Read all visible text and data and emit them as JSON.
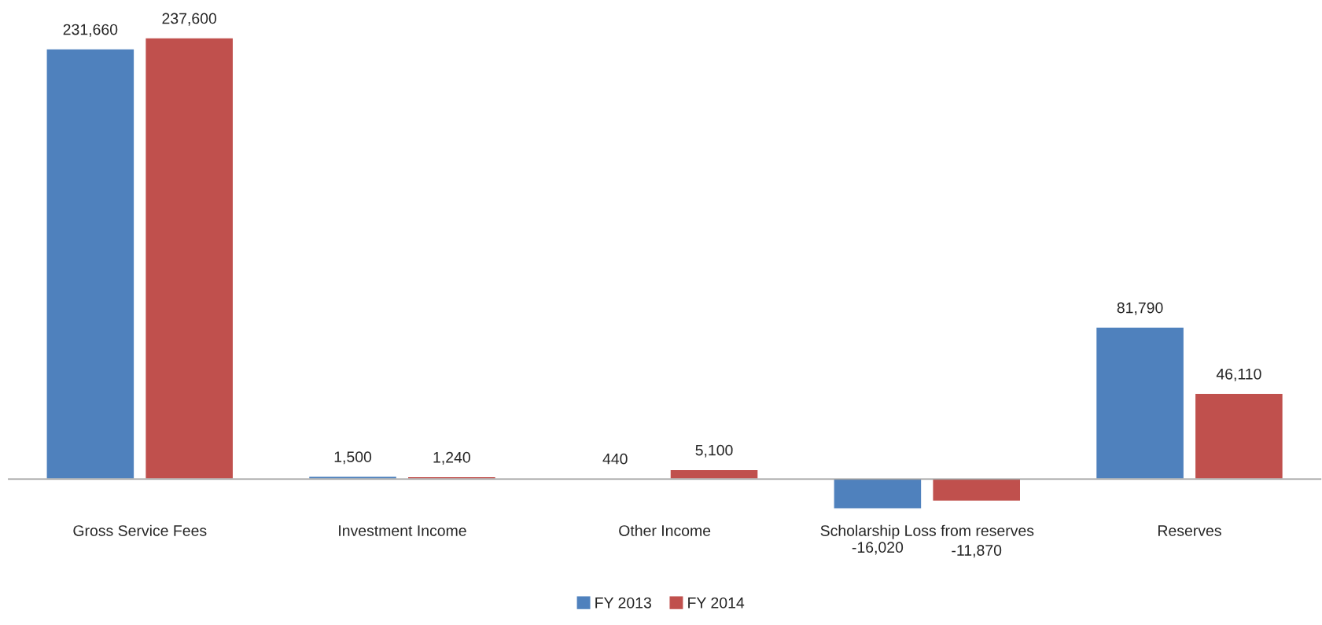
{
  "chart_data": {
    "type": "bar",
    "categories": [
      "Gross Service Fees",
      "Investment Income",
      "Other Income",
      "Scholarship Loss from reserves",
      "Reserves"
    ],
    "series": [
      {
        "name": "FY 2013",
        "color": "#4f81bd",
        "values": [
          231660,
          1500,
          440,
          -16020,
          81790
        ],
        "value_labels": [
          "231,660",
          "1,500",
          "440",
          "-16,020",
          "81,790"
        ]
      },
      {
        "name": "FY 2014",
        "color": "#c0504d",
        "values": [
          237600,
          1240,
          5100,
          -11870,
          46110
        ],
        "value_labels": [
          "237,600",
          "1,240",
          "5,100",
          "-11,870",
          "46,110"
        ]
      }
    ],
    "legend": "bottom",
    "grid": false
  }
}
